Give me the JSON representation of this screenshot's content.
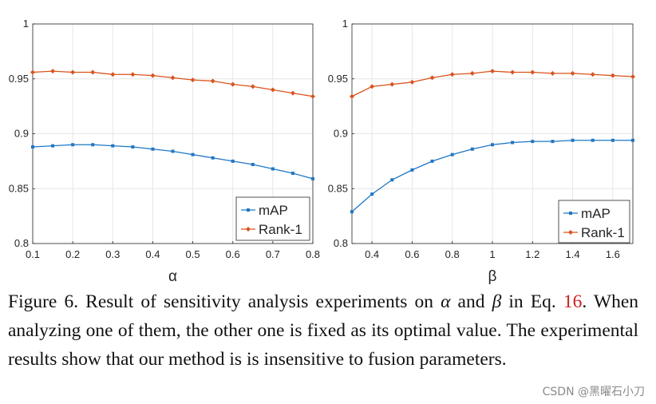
{
  "chart_data": [
    {
      "type": "line",
      "title": "",
      "xlabel": "α",
      "ylabel": "",
      "xlim": [
        0.1,
        0.8
      ],
      "ylim": [
        0.8,
        1.0
      ],
      "xticks": [
        "0.1",
        "0.2",
        "0.3",
        "0.4",
        "0.5",
        "0.6",
        "0.7",
        "0.8"
      ],
      "yticks": [
        "0.8",
        "0.85",
        "0.9",
        "0.95",
        "1"
      ],
      "legend_position": "bottom-right",
      "x": [
        0.1,
        0.15,
        0.2,
        0.25,
        0.3,
        0.35,
        0.4,
        0.45,
        0.5,
        0.55,
        0.6,
        0.65,
        0.7,
        0.75,
        0.8
      ],
      "series": [
        {
          "name": "mAP",
          "color": "#1f77c4",
          "marker": "square",
          "values": [
            0.888,
            0.889,
            0.89,
            0.89,
            0.889,
            0.888,
            0.886,
            0.884,
            0.881,
            0.878,
            0.875,
            0.872,
            0.868,
            0.864,
            0.859
          ]
        },
        {
          "name": "Rank-1",
          "color": "#d9531e",
          "marker": "diamond",
          "values": [
            0.956,
            0.957,
            0.956,
            0.956,
            0.954,
            0.954,
            0.953,
            0.951,
            0.949,
            0.948,
            0.945,
            0.943,
            0.94,
            0.937,
            0.934
          ]
        }
      ]
    },
    {
      "type": "line",
      "title": "",
      "xlabel": "β",
      "ylabel": "",
      "xlim": [
        0.3,
        1.7
      ],
      "ylim": [
        0.8,
        1.0
      ],
      "xticks": [
        "0.4",
        "0.6",
        "0.8",
        "1",
        "1.2",
        "1.4",
        "1.6"
      ],
      "yticks": [
        "0.8",
        "0.85",
        "0.9",
        "0.95",
        "1"
      ],
      "legend_position": "bottom-right",
      "x": [
        0.3,
        0.4,
        0.5,
        0.6,
        0.7,
        0.8,
        0.9,
        1.0,
        1.1,
        1.2,
        1.3,
        1.4,
        1.5,
        1.6,
        1.7
      ],
      "series": [
        {
          "name": "mAP",
          "color": "#1f77c4",
          "marker": "square",
          "values": [
            0.829,
            0.845,
            0.858,
            0.867,
            0.875,
            0.881,
            0.886,
            0.89,
            0.892,
            0.893,
            0.893,
            0.894,
            0.894,
            0.894,
            0.894
          ]
        },
        {
          "name": "Rank-1",
          "color": "#d9531e",
          "marker": "diamond",
          "values": [
            0.934,
            0.943,
            0.945,
            0.947,
            0.951,
            0.954,
            0.955,
            0.957,
            0.956,
            0.956,
            0.955,
            0.955,
            0.954,
            0.953,
            0.952
          ]
        }
      ]
    }
  ],
  "caption": {
    "label": "Figure 6.",
    "part1": " Result of sensitivity analysis experiments on ",
    "alpha": "α",
    "and": " and ",
    "beta": "β",
    "part2": " in Eq. ",
    "eq_ref": "16",
    "part3": ". When analyzing one of them, the other one is fixed as its optimal value. The experimental results show that our method is is insensitive to fusion parameters."
  },
  "watermark": "CSDN @黑曜石小刀"
}
